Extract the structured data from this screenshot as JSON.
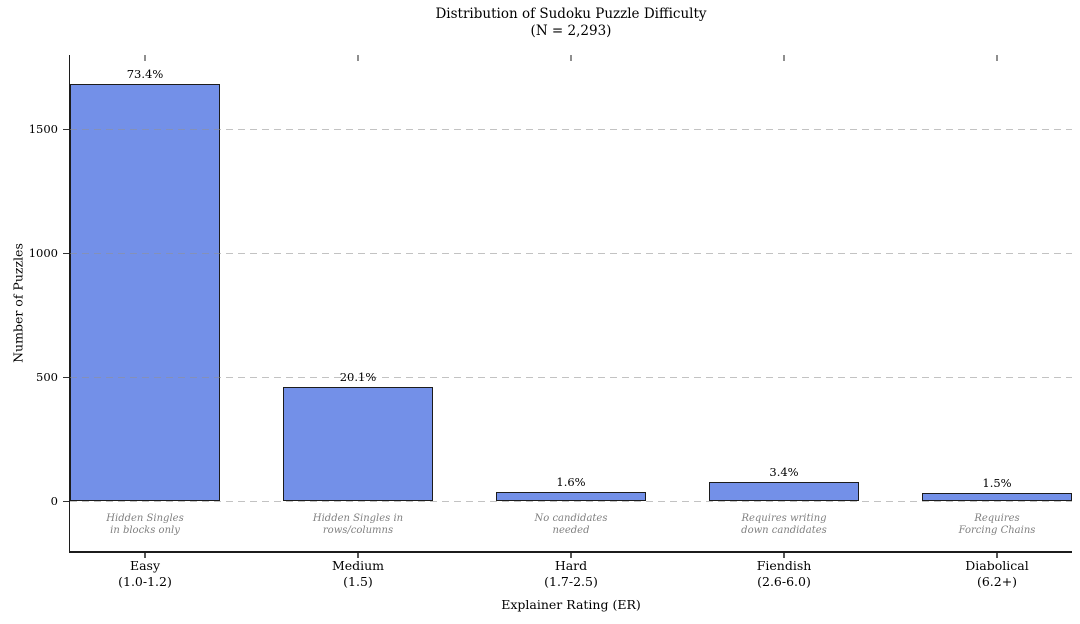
{
  "chart_data": {
    "type": "bar",
    "title": "Distribution of Sudoku Puzzle Difficulty",
    "subtitle": "(N = 2,293)",
    "xlabel": "Explainer Rating (ER)",
    "ylabel": "Number of Puzzles",
    "total_n": 2293,
    "categories": [
      [
        "Easy",
        "(1.0-1.2)"
      ],
      [
        "Medium",
        "(1.5)"
      ],
      [
        "Hard",
        "(1.7-2.5)"
      ],
      [
        "Fiendish",
        "(2.6-6.0)"
      ],
      [
        "Diabolical",
        "(6.2+)"
      ]
    ],
    "values": [
      1683,
      461,
      37,
      78,
      34
    ],
    "pct_labels": [
      "73.4%",
      "20.1%",
      "1.6%",
      "3.4%",
      "1.5%"
    ],
    "annotations": [
      [
        "Hidden Singles",
        "in blocks only"
      ],
      [
        "Hidden Singles in",
        "rows/columns"
      ],
      [
        "No candidates",
        "needed"
      ],
      [
        "Requires writing",
        "down candidates"
      ],
      [
        "Requires",
        "Forcing Chains"
      ]
    ],
    "yticks": [
      0,
      500,
      1000,
      1500
    ],
    "ylim": [
      -200,
      1800
    ],
    "grid": "horizontal-dashed",
    "legend": "none",
    "bar_color": "#7390e8",
    "bar_edge_color": "#1c1c1c",
    "annotation_color": "#808080",
    "gridline_color": "#c9c9c9"
  }
}
